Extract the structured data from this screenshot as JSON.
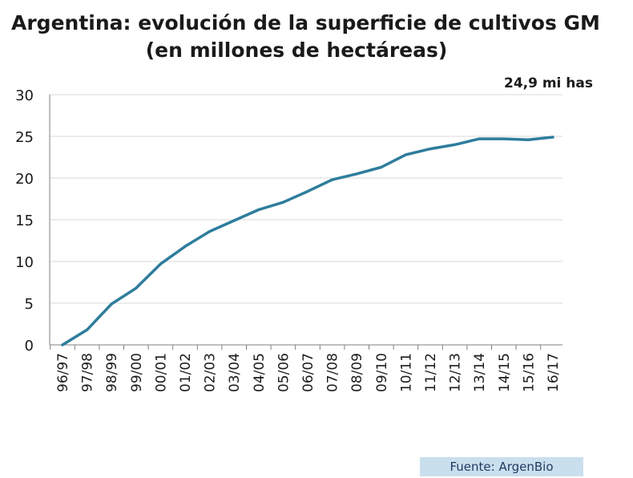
{
  "chart_data": {
    "type": "line",
    "title": "Argentina: evolución de la superficie de cultivos GM",
    "subtitle": "(en millones de hectáreas)",
    "categories": [
      "96/97",
      "97/98",
      "98/99",
      "99/00",
      "00/01",
      "01/02",
      "02/03",
      "03/04",
      "04/05",
      "05/06",
      "06/07",
      "07/08",
      "08/09",
      "09/10",
      "10/11",
      "11/12",
      "12/13",
      "13/14",
      "14/15",
      "15/16",
      "16/17"
    ],
    "series": [
      {
        "name": "",
        "values": [
          0,
          1.8,
          4.9,
          6.8,
          9.7,
          11.8,
          13.6,
          14.9,
          16.2,
          17.1,
          18.4,
          19.8,
          20.5,
          21.3,
          22.8,
          23.5,
          24.0,
          24.7,
          24.7,
          24.6,
          24.9
        ]
      }
    ],
    "yticks": [
      0,
      5,
      10,
      15,
      20,
      25,
      30
    ],
    "ylim": [
      0,
      30
    ],
    "xlabel": "",
    "ylabel": "",
    "grid": true,
    "annotation": "24,9 mi has",
    "source": "Fuente: ArgenBio",
    "line_color": "#2e7d9c",
    "grid_color": "#d9d9d9"
  }
}
